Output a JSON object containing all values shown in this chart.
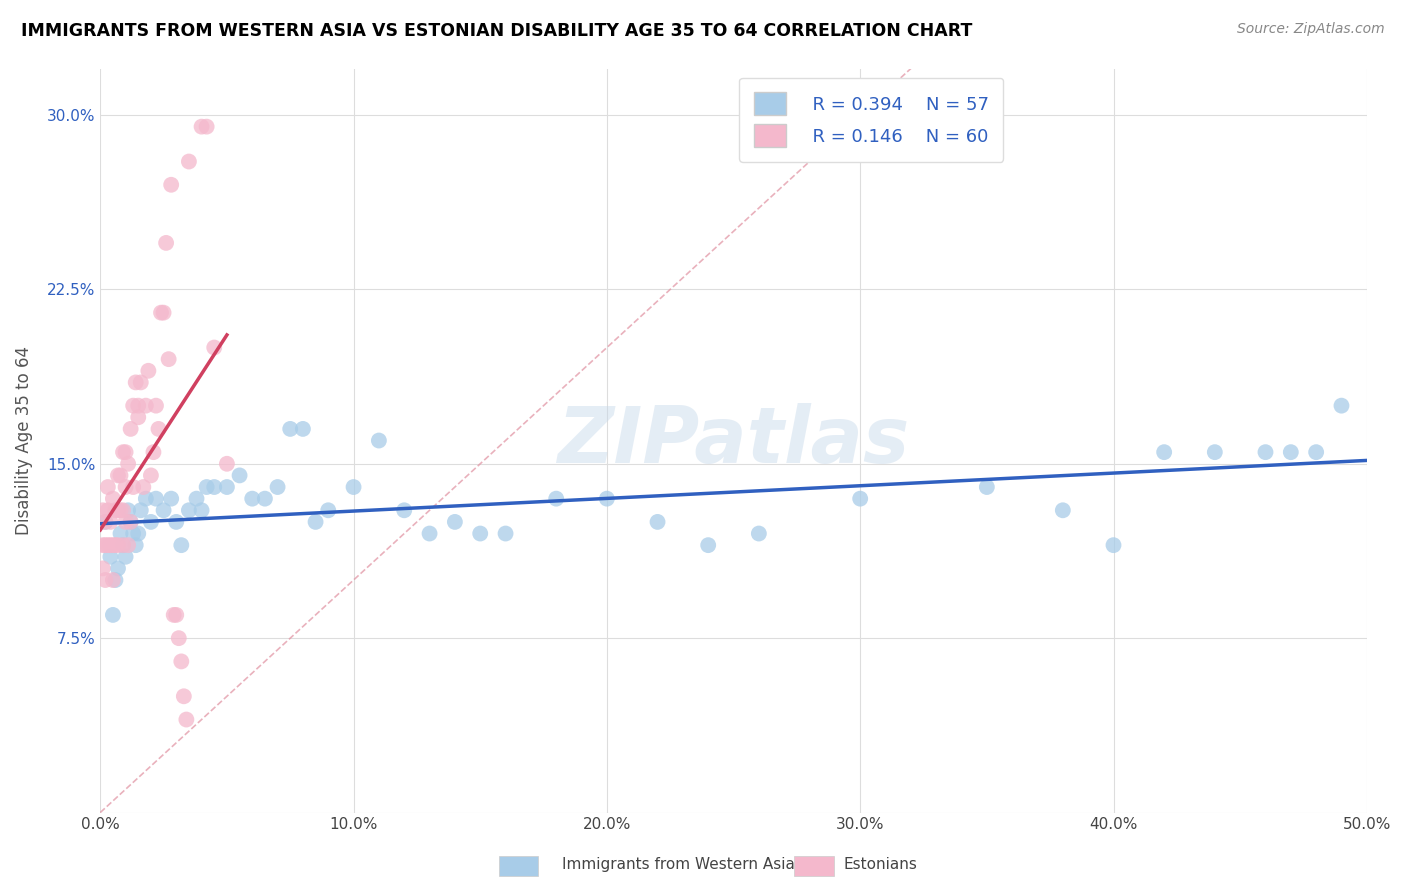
{
  "title": "IMMIGRANTS FROM WESTERN ASIA VS ESTONIAN DISABILITY AGE 35 TO 64 CORRELATION CHART",
  "source": "Source: ZipAtlas.com",
  "ylabel": "Disability Age 35 to 64",
  "xlim": [
    0.0,
    0.5
  ],
  "ylim": [
    0.0,
    0.32
  ],
  "xticks": [
    0.0,
    0.1,
    0.2,
    0.3,
    0.4,
    0.5
  ],
  "xticklabels": [
    "0.0%",
    "10.0%",
    "20.0%",
    "30.0%",
    "40.0%",
    "50.0%"
  ],
  "yticks": [
    0.0,
    0.075,
    0.15,
    0.225,
    0.3
  ],
  "yticklabels": [
    "",
    "7.5%",
    "15.0%",
    "22.5%",
    "30.0%"
  ],
  "legend_R1": "R = 0.394",
  "legend_N1": "N = 57",
  "legend_R2": "R = 0.146",
  "legend_N2": "N = 60",
  "blue_color": "#a8cce8",
  "pink_color": "#f4b8cc",
  "line_blue": "#3060c0",
  "line_pink": "#d04060",
  "watermark": "ZIPatlas",
  "blue_scatter_x": [
    0.002,
    0.004,
    0.005,
    0.006,
    0.007,
    0.008,
    0.009,
    0.01,
    0.011,
    0.012,
    0.013,
    0.014,
    0.015,
    0.016,
    0.018,
    0.02,
    0.022,
    0.025,
    0.028,
    0.03,
    0.032,
    0.035,
    0.038,
    0.04,
    0.042,
    0.045,
    0.05,
    0.055,
    0.06,
    0.065,
    0.07,
    0.075,
    0.08,
    0.085,
    0.09,
    0.1,
    0.11,
    0.12,
    0.13,
    0.14,
    0.15,
    0.16,
    0.18,
    0.2,
    0.22,
    0.24,
    0.26,
    0.3,
    0.35,
    0.38,
    0.4,
    0.42,
    0.44,
    0.46,
    0.47,
    0.48,
    0.49
  ],
  "blue_scatter_y": [
    0.125,
    0.11,
    0.085,
    0.1,
    0.105,
    0.12,
    0.115,
    0.11,
    0.13,
    0.125,
    0.12,
    0.115,
    0.12,
    0.13,
    0.135,
    0.125,
    0.135,
    0.13,
    0.135,
    0.125,
    0.115,
    0.13,
    0.135,
    0.13,
    0.14,
    0.14,
    0.14,
    0.145,
    0.135,
    0.135,
    0.14,
    0.165,
    0.165,
    0.125,
    0.13,
    0.14,
    0.16,
    0.13,
    0.12,
    0.125,
    0.12,
    0.12,
    0.135,
    0.135,
    0.125,
    0.115,
    0.12,
    0.135,
    0.14,
    0.13,
    0.115,
    0.155,
    0.155,
    0.155,
    0.155,
    0.155,
    0.175
  ],
  "pink_scatter_x": [
    0.001,
    0.001,
    0.001,
    0.002,
    0.002,
    0.002,
    0.003,
    0.003,
    0.003,
    0.004,
    0.004,
    0.005,
    0.005,
    0.005,
    0.006,
    0.006,
    0.007,
    0.007,
    0.007,
    0.008,
    0.008,
    0.009,
    0.009,
    0.009,
    0.01,
    0.01,
    0.01,
    0.011,
    0.011,
    0.012,
    0.012,
    0.013,
    0.013,
    0.014,
    0.015,
    0.015,
    0.016,
    0.017,
    0.018,
    0.019,
    0.02,
    0.021,
    0.022,
    0.023,
    0.024,
    0.025,
    0.026,
    0.027,
    0.028,
    0.029,
    0.03,
    0.031,
    0.032,
    0.033,
    0.034,
    0.035,
    0.04,
    0.042,
    0.045,
    0.05
  ],
  "pink_scatter_y": [
    0.105,
    0.115,
    0.13,
    0.1,
    0.115,
    0.125,
    0.115,
    0.13,
    0.14,
    0.115,
    0.125,
    0.1,
    0.115,
    0.135,
    0.115,
    0.13,
    0.115,
    0.13,
    0.145,
    0.13,
    0.145,
    0.115,
    0.13,
    0.155,
    0.125,
    0.14,
    0.155,
    0.115,
    0.15,
    0.125,
    0.165,
    0.14,
    0.175,
    0.185,
    0.17,
    0.175,
    0.185,
    0.14,
    0.175,
    0.19,
    0.145,
    0.155,
    0.175,
    0.165,
    0.215,
    0.215,
    0.245,
    0.195,
    0.27,
    0.085,
    0.085,
    0.075,
    0.065,
    0.05,
    0.04,
    0.28,
    0.295,
    0.295,
    0.2,
    0.15
  ]
}
